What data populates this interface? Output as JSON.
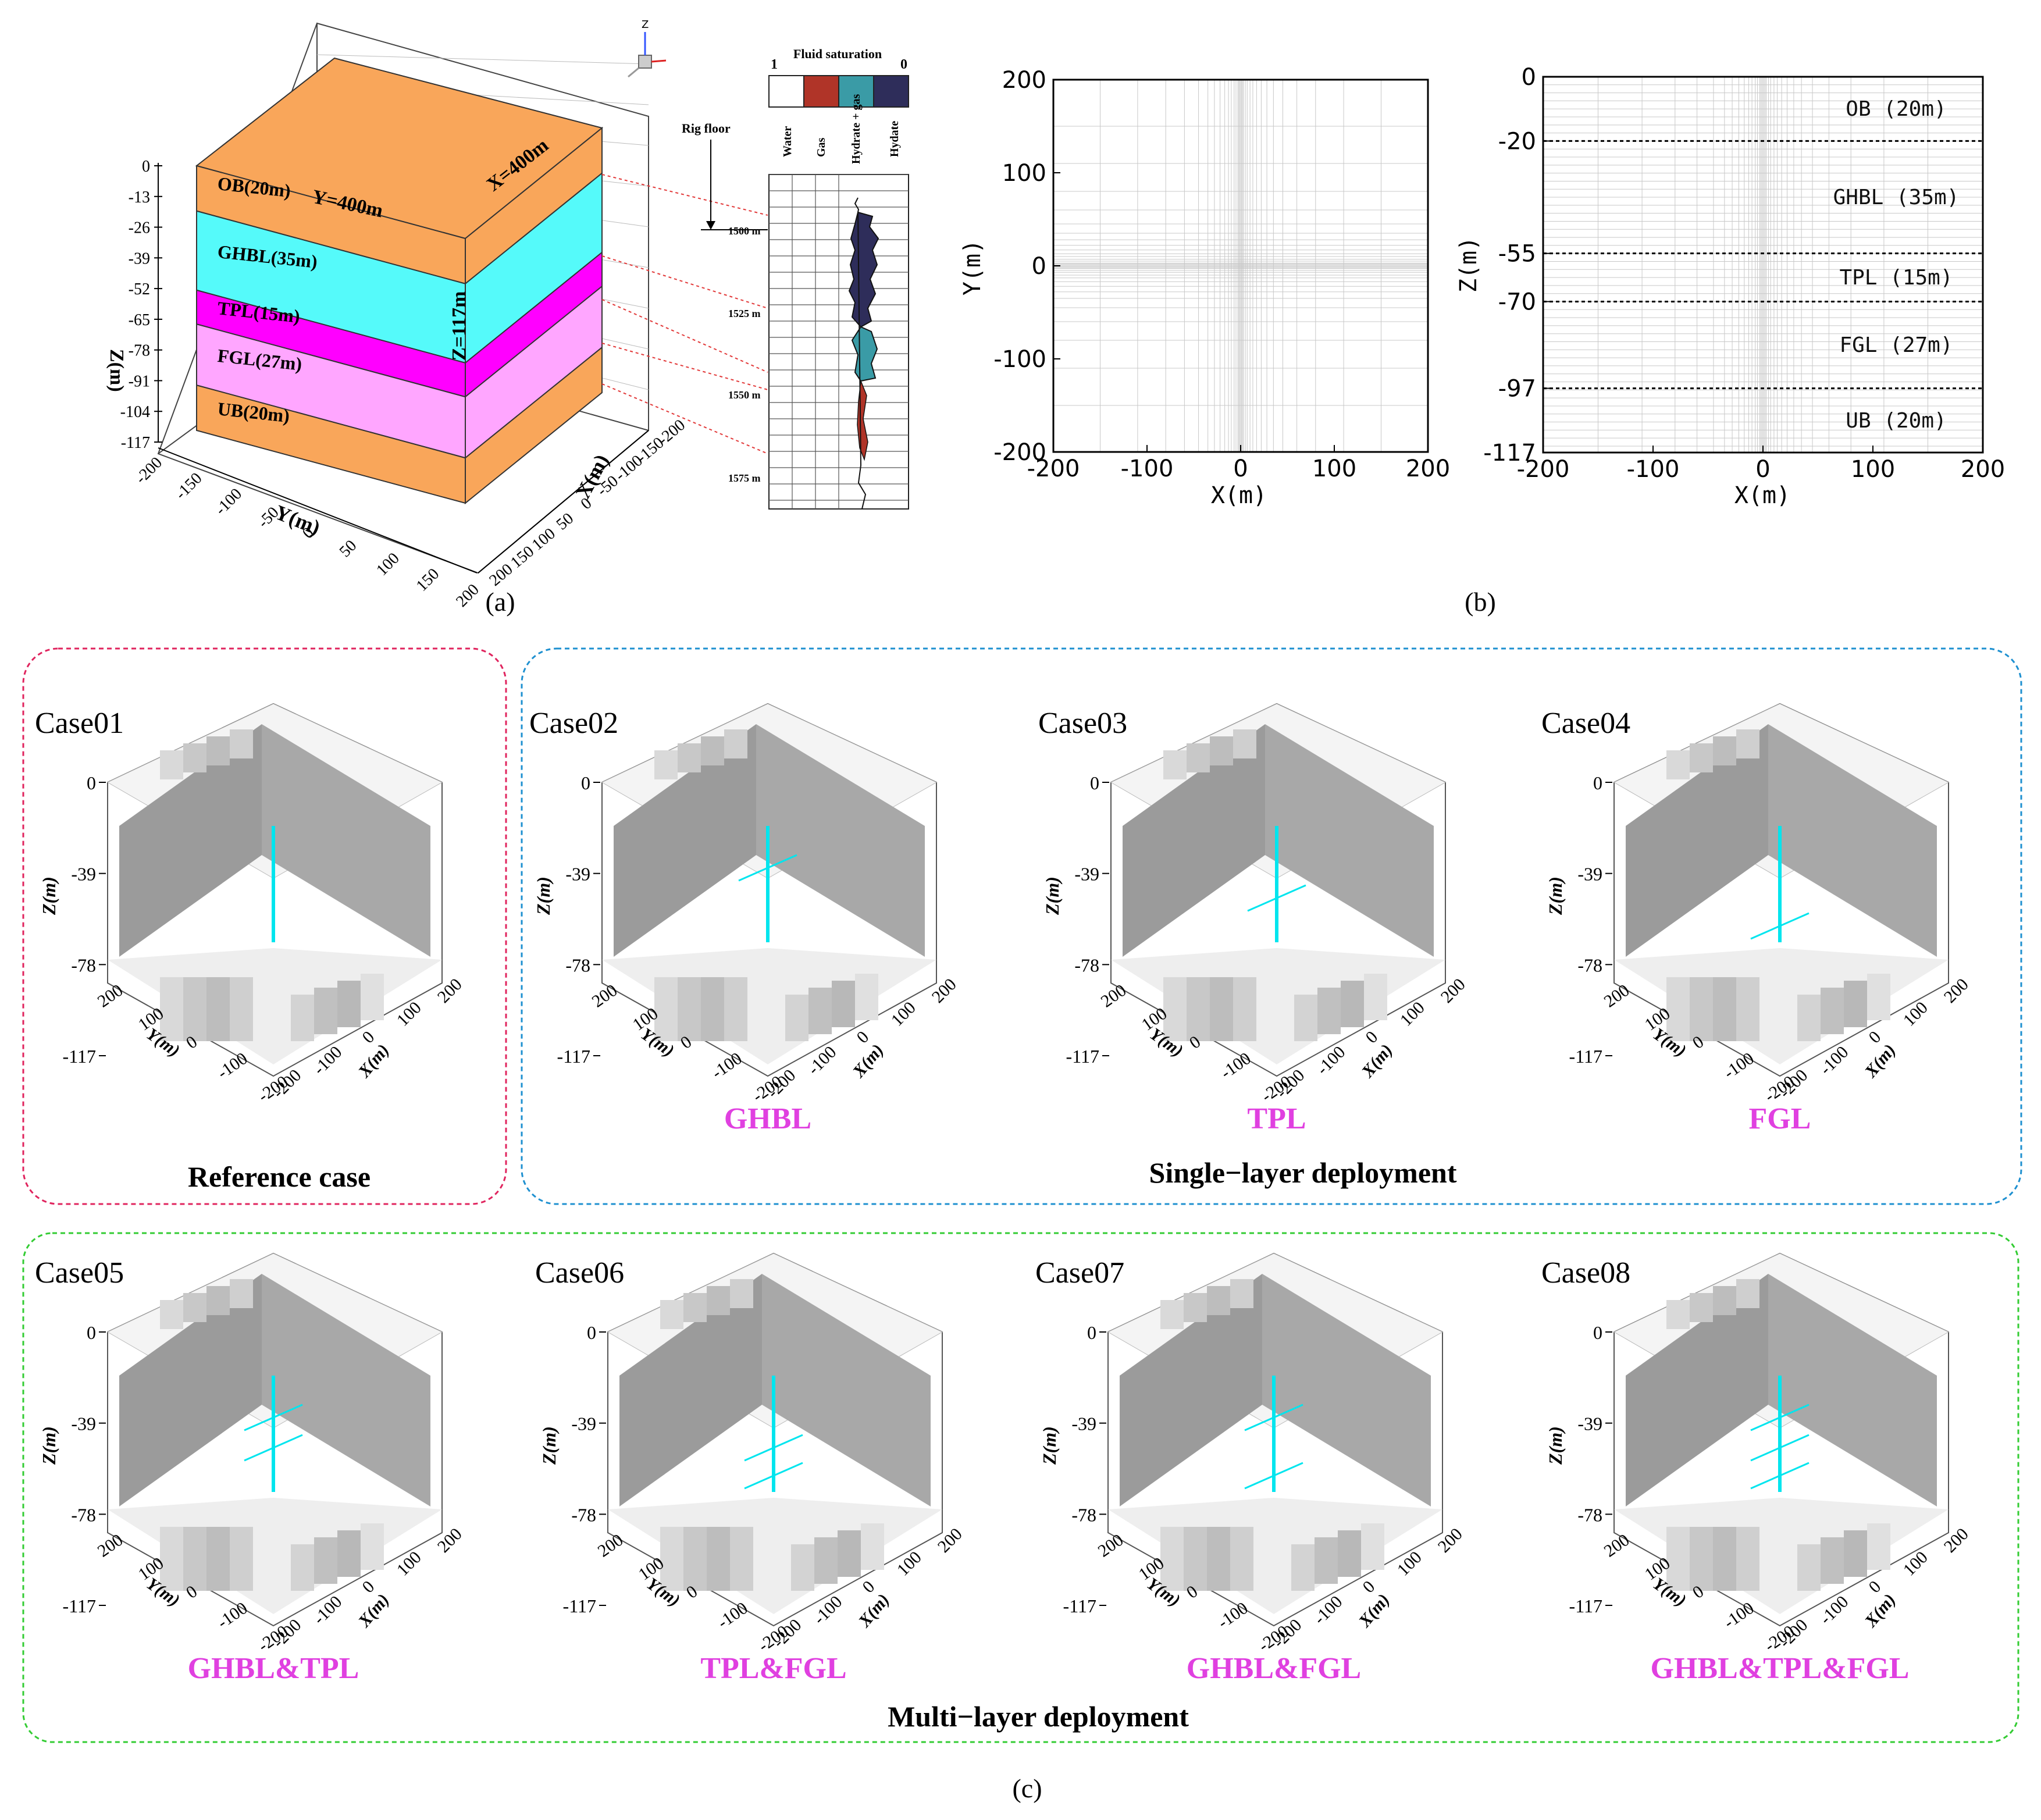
{
  "colors": {
    "ob": "#f9a65a",
    "ghbl": "#55fafa",
    "tpl": "#ff00ff",
    "fgl": "#ffa6ff",
    "ub": "#f9a65a",
    "gas": "#b03428",
    "hydrate_gas": "#3a9ba6",
    "hydrate": "#2e2d5a",
    "well": "#00e5ee",
    "deploy_label": "#e040e0",
    "ref_border": "#e0245e",
    "single_border": "#1e90d0",
    "multi_border": "#33cc33",
    "grey_face": "#999999"
  },
  "panel_a": {
    "caption": "(a)",
    "block": {
      "layers": [
        {
          "key": "ob",
          "label": "OB(20m)",
          "thickness_m": 20
        },
        {
          "key": "ghbl",
          "label": "GHBL(35m)",
          "thickness_m": 35
        },
        {
          "key": "tpl",
          "label": "TPL(15m)",
          "thickness_m": 15
        },
        {
          "key": "fgl",
          "label": "FGL(27m)",
          "thickness_m": 27
        },
        {
          "key": "ub",
          "label": "UB(20m)",
          "thickness_m": 20
        }
      ],
      "dim_y": "Y=400m",
      "dim_x": "X=400m",
      "dim_z": "Z=117m",
      "z_axis_label": "Z(m)",
      "z_ticks": [
        "0",
        "-13",
        "-26",
        "-39",
        "-52",
        "-65",
        "-78",
        "-91",
        "-104",
        "-117"
      ],
      "y_axis_label": "Y(m)",
      "y_ticks": [
        "-200",
        "-150",
        "-100",
        "-50",
        "0",
        "50",
        "100",
        "150",
        "200"
      ],
      "x_axis_label": "X(m)",
      "x_ticks": [
        "-200",
        "-150",
        "-100",
        "-50",
        "0",
        "50",
        "100",
        "150",
        "200"
      ],
      "triad": [
        "Z",
        "Y",
        "X"
      ]
    },
    "log": {
      "title": "Fluid saturation",
      "scale_left": "1",
      "scale_right": "0",
      "legend": [
        "Water",
        "Gas",
        "Hydrate + gas",
        "Hydate"
      ],
      "rig_floor": "Rig floor",
      "depths": [
        "1500 m",
        "1525 m",
        "1550 m",
        "1575 m"
      ]
    }
  },
  "panel_b": {
    "caption": "(b)",
    "plan": {
      "xlabel": "X(m)",
      "ylabel": "Y(m)",
      "x_ticks": [
        "-200",
        "-100",
        "0",
        "100",
        "200"
      ],
      "y_ticks": [
        "200",
        "100",
        "0",
        "-100",
        "-200"
      ]
    },
    "section": {
      "xlabel": "X(m)",
      "ylabel": "Z(m)",
      "x_ticks": [
        "-200",
        "-100",
        "0",
        "100",
        "200"
      ],
      "z_ticks": [
        "0",
        "-20",
        "-55",
        "-70",
        "-97",
        "-117"
      ],
      "layer_labels": [
        "OB (20m)",
        "GHBL (35m)",
        "TPL (15m)",
        "FGL (27m)",
        "UB (20m)"
      ]
    }
  },
  "panel_c": {
    "caption": "(c)",
    "axis": {
      "z_label": "Z(m)",
      "y_label": "Y(m)",
      "x_label": "X(m)",
      "z_ticks": [
        "0",
        "-39",
        "-78",
        "-117"
      ],
      "y_ticks": [
        "200",
        "100",
        "0",
        "-100",
        "-200"
      ],
      "x_ticks": [
        "-200",
        "-100",
        "0",
        "100",
        "200"
      ]
    },
    "groups": {
      "reference": "Reference case",
      "single": "Single−layer deployment",
      "multi": "Multi−layer deployment"
    },
    "cases": [
      {
        "name": "Case01",
        "deployment": "",
        "laterals": []
      },
      {
        "name": "Case02",
        "deployment": "GHBL",
        "laterals": [
          "ghbl"
        ]
      },
      {
        "name": "Case03",
        "deployment": "TPL",
        "laterals": [
          "tpl"
        ]
      },
      {
        "name": "Case04",
        "deployment": "FGL",
        "laterals": [
          "fgl"
        ]
      },
      {
        "name": "Case05",
        "deployment": "GHBL&TPL",
        "laterals": [
          "ghbl",
          "tpl"
        ]
      },
      {
        "name": "Case06",
        "deployment": "TPL&FGL",
        "laterals": [
          "tpl",
          "fgl"
        ]
      },
      {
        "name": "Case07",
        "deployment": "GHBL&FGL",
        "laterals": [
          "ghbl",
          "fgl"
        ]
      },
      {
        "name": "Case08",
        "deployment": "GHBL&TPL&FGL",
        "laterals": [
          "ghbl",
          "tpl",
          "fgl"
        ]
      }
    ]
  }
}
